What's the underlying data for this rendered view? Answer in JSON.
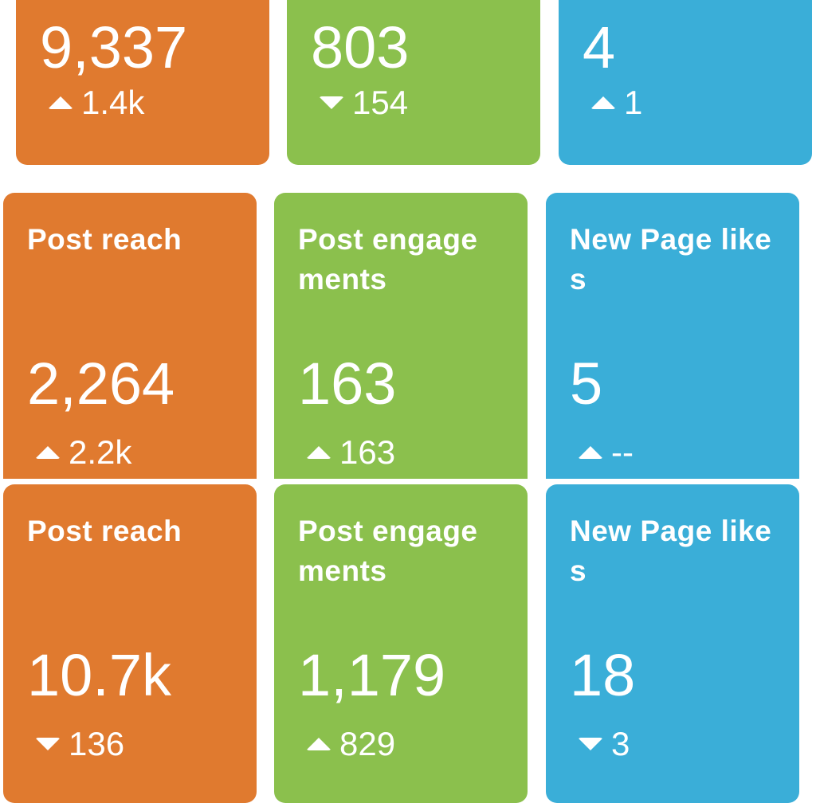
{
  "top_row": [
    {
      "value": "9,337",
      "delta": "1.4k",
      "direction": "up",
      "color": "#E07A2F"
    },
    {
      "value": "803",
      "delta": "154",
      "direction": "down",
      "color": "#8BC04D"
    },
    {
      "value": "4",
      "delta": "1",
      "direction": "up",
      "color": "#3AAED8"
    }
  ],
  "middle_row": [
    {
      "title": "Post reach",
      "value": "2,264",
      "delta": "2.2k",
      "direction": "up"
    },
    {
      "title": "Post engagements",
      "value": "163",
      "delta": "163",
      "direction": "up"
    },
    {
      "title": "New Page likes",
      "value": "5",
      "delta": "--",
      "direction": "up"
    }
  ],
  "bottom_row": [
    {
      "title": "Post reach",
      "value": "10.7k",
      "delta": "136",
      "direction": "down"
    },
    {
      "title": "Post engagements",
      "value": "1,179",
      "delta": "829",
      "direction": "up"
    },
    {
      "title": "New Page likes",
      "value": "18",
      "delta": "3",
      "direction": "down"
    }
  ]
}
